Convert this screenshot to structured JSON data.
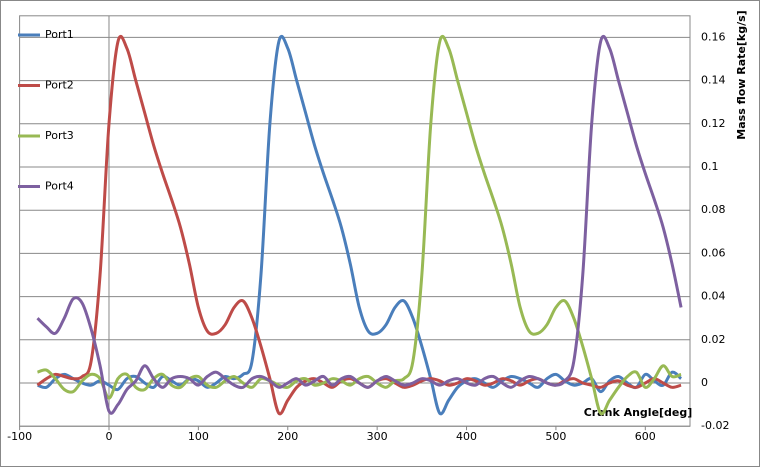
{
  "chart_data": {
    "type": "line",
    "x_label": "Crank Angle[deg]",
    "y_label": "Mass flow Rate[kg/s]",
    "x": [
      -80,
      -70,
      -60,
      -50,
      -40,
      -30,
      -20,
      -10,
      0,
      10,
      20,
      30,
      40,
      50,
      60,
      70,
      80,
      90,
      100,
      110,
      120,
      130,
      140,
      150,
      160,
      170,
      180,
      190,
      200,
      210,
      220,
      230,
      240,
      250,
      260,
      270,
      280,
      290,
      300,
      310,
      320,
      330,
      340,
      350,
      360,
      370,
      380,
      390,
      400,
      410,
      420,
      430,
      440,
      450,
      460,
      470,
      480,
      490,
      500,
      510,
      520,
      530,
      540,
      550,
      560,
      570,
      580,
      590,
      600,
      610,
      620,
      630,
      640
    ],
    "series": [
      {
        "name": "Port1",
        "color": "#4a7ebb",
        "values": [
          -0.001,
          -0.002,
          0.002,
          0.004,
          0.002,
          0.0,
          -0.001,
          0.001,
          -0.001,
          -0.003,
          0.002,
          0.003,
          0.0,
          -0.002,
          0.003,
          0.001,
          -0.001,
          0.002,
          0.001,
          -0.002,
          0.0,
          0.003,
          0.002,
          0.004,
          0.01,
          0.05,
          0.12,
          0.158,
          0.155,
          0.14,
          0.125,
          0.11,
          0.097,
          0.085,
          0.072,
          0.055,
          0.035,
          0.024,
          0.023,
          0.027,
          0.035,
          0.038,
          0.03,
          0.017,
          0.002,
          -0.014,
          -0.008,
          -0.002,
          0.001,
          0.002,
          0.0,
          -0.002,
          0.001,
          0.003,
          0.002,
          0.0,
          -0.002,
          0.002,
          0.004,
          0.001,
          -0.001,
          0.0,
          0.002,
          -0.004,
          0.001,
          0.003,
          0.0,
          -0.002,
          0.004,
          0.001,
          -0.001,
          0.005,
          0.002
        ]
      },
      {
        "name": "Port2",
        "color": "#be4b48",
        "values": [
          -0.001,
          0.002,
          0.004,
          0.003,
          0.002,
          0.003,
          0.01,
          0.05,
          0.12,
          0.158,
          0.155,
          0.14,
          0.125,
          0.11,
          0.097,
          0.085,
          0.072,
          0.055,
          0.035,
          0.024,
          0.023,
          0.027,
          0.035,
          0.038,
          0.03,
          0.017,
          0.002,
          -0.014,
          -0.008,
          -0.002,
          0.001,
          0.002,
          0.0,
          -0.002,
          0.001,
          0.002,
          0.0,
          -0.002,
          0.001,
          0.002,
          0.0,
          -0.002,
          -0.001,
          0.001,
          0.002,
          0.001,
          -0.001,
          0.0,
          0.002,
          0.001,
          -0.001,
          0.0,
          0.002,
          0.001,
          -0.001,
          0.001,
          0.002,
          0.0,
          -0.001,
          0.001,
          0.002,
          0.0,
          -0.001,
          -0.002,
          0.0,
          0.001,
          -0.001,
          -0.002,
          0.0,
          0.002,
          0.0,
          -0.002,
          -0.001
        ]
      },
      {
        "name": "Port3",
        "color": "#98b954",
        "values": [
          0.005,
          0.006,
          0.002,
          -0.003,
          -0.004,
          0.001,
          0.004,
          0.002,
          -0.007,
          0.002,
          0.004,
          -0.002,
          -0.003,
          0.002,
          0.004,
          -0.001,
          -0.002,
          0.002,
          0.003,
          -0.001,
          -0.002,
          0.001,
          0.003,
          0.0,
          -0.002,
          0.002,
          0.001,
          -0.001,
          -0.002,
          0.001,
          0.002,
          -0.001,
          0.0,
          0.002,
          0.001,
          -0.001,
          0.002,
          0.003,
          0.0,
          -0.002,
          0.001,
          0.002,
          0.01,
          0.05,
          0.12,
          0.158,
          0.155,
          0.14,
          0.125,
          0.11,
          0.097,
          0.085,
          0.072,
          0.055,
          0.035,
          0.024,
          0.023,
          0.027,
          0.035,
          0.038,
          0.03,
          0.017,
          0.002,
          -0.014,
          -0.008,
          -0.002,
          0.003,
          0.005,
          -0.002,
          0.002,
          0.008,
          0.003,
          0.004
        ]
      },
      {
        "name": "Port4",
        "color": "#7d60a0",
        "values": [
          0.03,
          0.026,
          0.023,
          0.03,
          0.039,
          0.037,
          0.025,
          0.008,
          -0.013,
          -0.01,
          -0.003,
          0.001,
          0.008,
          0.002,
          -0.002,
          0.002,
          0.003,
          0.002,
          -0.001,
          0.003,
          0.005,
          0.002,
          -0.001,
          -0.002,
          0.002,
          0.003,
          0.001,
          -0.002,
          0.0,
          0.002,
          -0.001,
          0.001,
          0.003,
          -0.001,
          0.002,
          0.003,
          0.0,
          -0.002,
          0.001,
          0.003,
          0.001,
          -0.001,
          0.0,
          0.002,
          0.001,
          -0.001,
          0.001,
          0.002,
          0.0,
          -0.001,
          0.002,
          0.003,
          0.0,
          -0.002,
          0.001,
          0.003,
          0.002,
          0.0,
          -0.001,
          0.001,
          0.01,
          0.05,
          0.12,
          0.158,
          0.155,
          0.14,
          0.125,
          0.11,
          0.097,
          0.085,
          0.072,
          0.055,
          0.035
        ]
      }
    ],
    "xlim": [
      -100,
      650
    ],
    "xticks": [
      -100,
      0,
      100,
      200,
      300,
      400,
      500,
      600
    ],
    "ylim": [
      -0.02,
      0.17
    ],
    "yticks": [
      -0.02,
      0,
      0.02,
      0.04,
      0.06,
      0.08,
      0.1,
      0.12,
      0.14,
      0.16
    ],
    "grid": true,
    "legend": "left"
  }
}
